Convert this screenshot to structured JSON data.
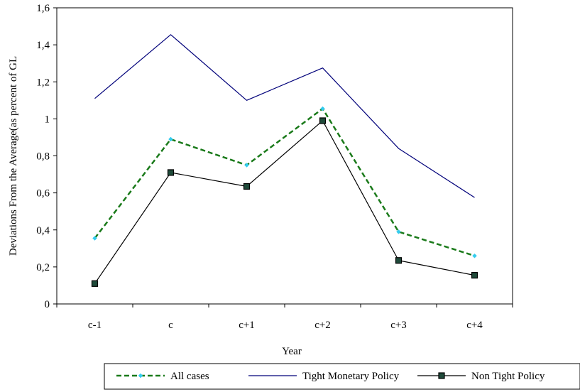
{
  "chart_data": {
    "type": "line",
    "title": "",
    "xlabel": "Year",
    "ylabel": "Deviations From the Average(as percent of GL",
    "categories": [
      "c-1",
      "c",
      "c+1",
      "c+2",
      "c+3",
      "c+4"
    ],
    "ylim": [
      0,
      1.6
    ],
    "yticks": [
      "0",
      "0,2",
      "0,4",
      "0,6",
      "0,8",
      "1",
      "1,2",
      "1,4",
      "1,6"
    ],
    "grid": false,
    "legend_position": "bottom",
    "series": [
      {
        "name": "All cases",
        "values": [
          0.355,
          0.89,
          0.75,
          1.055,
          0.39,
          0.26
        ],
        "color": "#1a7a1a",
        "marker_color": "#33ccee",
        "style": "dashed",
        "marker": "diamond"
      },
      {
        "name": "Tight Monetary Policy",
        "values": [
          1.11,
          1.455,
          1.1,
          1.275,
          0.84,
          0.575
        ],
        "color": "#00007a",
        "style": "solid",
        "marker": "none"
      },
      {
        "name": "Non Tight Policy",
        "values": [
          0.11,
          0.71,
          0.635,
          0.99,
          0.235,
          0.155
        ],
        "color": "#000000",
        "marker_color": "#1f4a3a",
        "style": "solid",
        "marker": "square"
      }
    ]
  }
}
